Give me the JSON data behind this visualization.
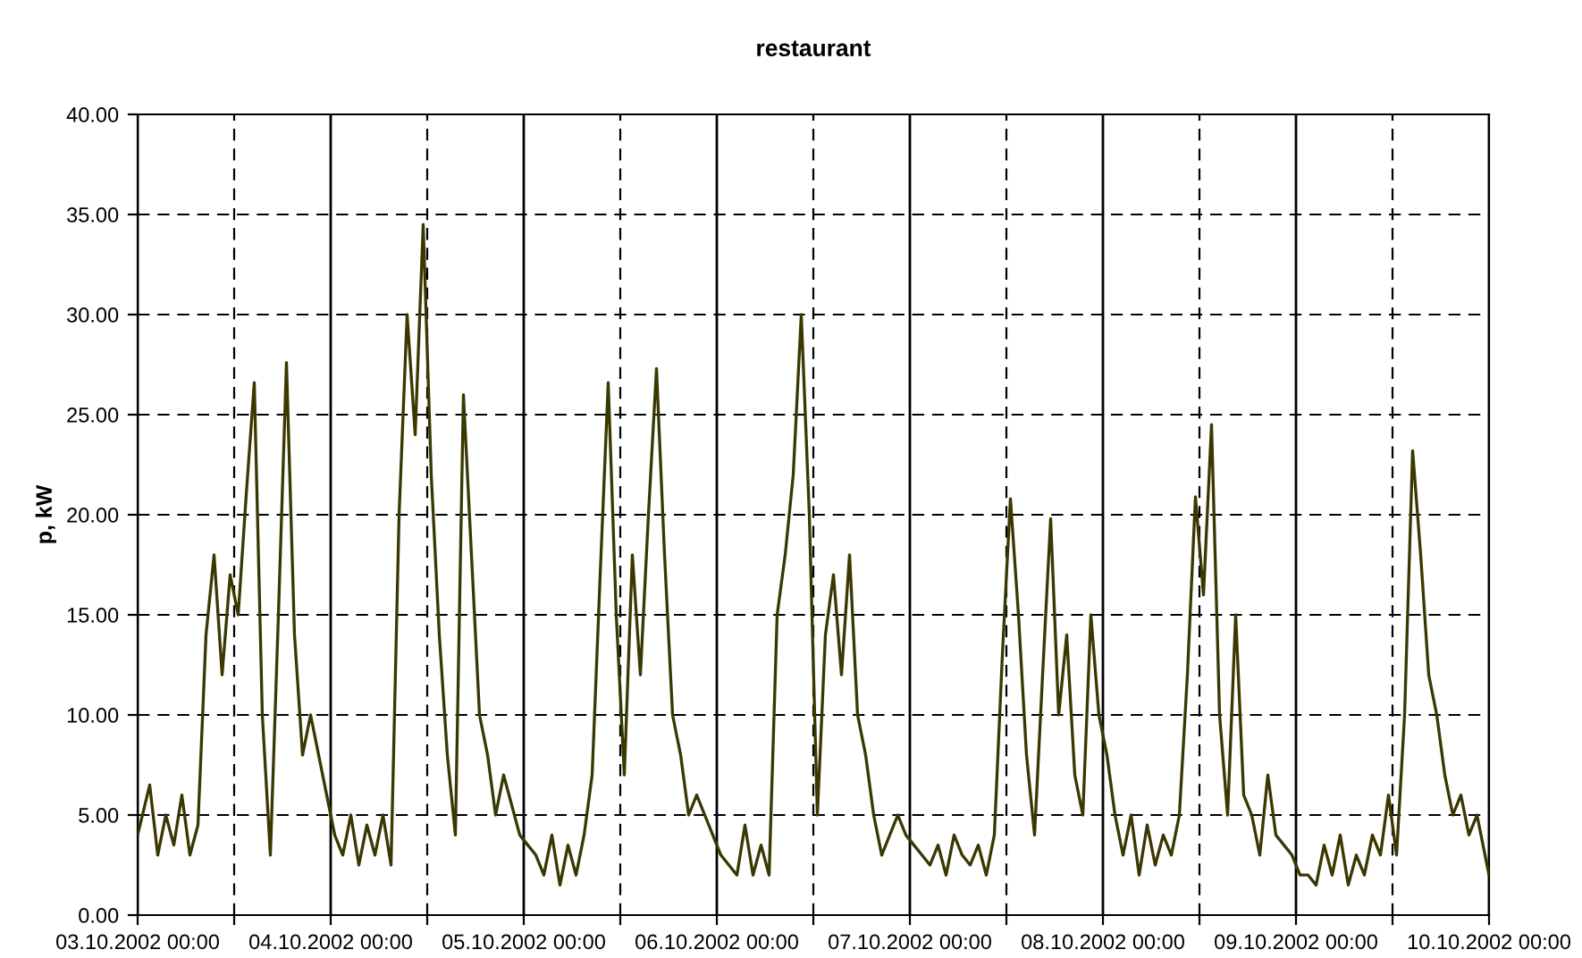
{
  "chart_data": {
    "type": "line",
    "title": "restaurant",
    "ylabel": "p, kW",
    "x": [
      "2002-10-03T00:00",
      "2002-10-03T01:30",
      "2002-10-03T02:30",
      "2002-10-03T03:30",
      "2002-10-03T04:30",
      "2002-10-03T05:30",
      "2002-10-03T06:30",
      "2002-10-03T07:30",
      "2002-10-03T08:30",
      "2002-10-03T09:30",
      "2002-10-03T10:30",
      "2002-10-03T11:30",
      "2002-10-03T12:30",
      "2002-10-03T13:30",
      "2002-10-03T14:30",
      "2002-10-03T15:30",
      "2002-10-03T16:30",
      "2002-10-03T17:30",
      "2002-10-03T18:30",
      "2002-10-03T19:30",
      "2002-10-03T20:30",
      "2002-10-03T21:30",
      "2002-10-03T22:30",
      "2002-10-03T23:30",
      "2002-10-04T00:30",
      "2002-10-04T01:30",
      "2002-10-04T02:30",
      "2002-10-04T03:30",
      "2002-10-04T04:30",
      "2002-10-04T05:30",
      "2002-10-04T06:30",
      "2002-10-04T07:30",
      "2002-10-04T08:30",
      "2002-10-04T09:30",
      "2002-10-04T10:30",
      "2002-10-04T11:30",
      "2002-10-04T12:30",
      "2002-10-04T13:30",
      "2002-10-04T14:30",
      "2002-10-04T15:30",
      "2002-10-04T16:30",
      "2002-10-04T17:30",
      "2002-10-04T18:30",
      "2002-10-04T19:30",
      "2002-10-04T20:30",
      "2002-10-04T21:30",
      "2002-10-04T22:30",
      "2002-10-04T23:30",
      "2002-10-05T00:30",
      "2002-10-05T01:30",
      "2002-10-05T02:30",
      "2002-10-05T03:30",
      "2002-10-05T04:30",
      "2002-10-05T05:30",
      "2002-10-05T06:30",
      "2002-10-05T07:30",
      "2002-10-05T08:30",
      "2002-10-05T09:30",
      "2002-10-05T10:30",
      "2002-10-05T11:30",
      "2002-10-05T12:30",
      "2002-10-05T13:30",
      "2002-10-05T14:30",
      "2002-10-05T15:30",
      "2002-10-05T16:30",
      "2002-10-05T17:30",
      "2002-10-05T18:30",
      "2002-10-05T19:30",
      "2002-10-05T20:30",
      "2002-10-05T21:30",
      "2002-10-05T22:30",
      "2002-10-05T23:30",
      "2002-10-06T00:30",
      "2002-10-06T01:30",
      "2002-10-06T02:30",
      "2002-10-06T03:30",
      "2002-10-06T04:30",
      "2002-10-06T05:30",
      "2002-10-06T06:30",
      "2002-10-06T07:30",
      "2002-10-06T08:30",
      "2002-10-06T09:30",
      "2002-10-06T10:30",
      "2002-10-06T11:30",
      "2002-10-06T12:30",
      "2002-10-06T13:30",
      "2002-10-06T14:30",
      "2002-10-06T15:30",
      "2002-10-06T16:30",
      "2002-10-06T17:30",
      "2002-10-06T18:30",
      "2002-10-06T19:30",
      "2002-10-06T20:30",
      "2002-10-06T21:30",
      "2002-10-06T22:30",
      "2002-10-06T23:30",
      "2002-10-07T00:30",
      "2002-10-07T01:30",
      "2002-10-07T02:30",
      "2002-10-07T03:30",
      "2002-10-07T04:30",
      "2002-10-07T05:30",
      "2002-10-07T06:30",
      "2002-10-07T07:30",
      "2002-10-07T08:30",
      "2002-10-07T09:30",
      "2002-10-07T10:30",
      "2002-10-07T11:30",
      "2002-10-07T12:30",
      "2002-10-07T13:30",
      "2002-10-07T14:30",
      "2002-10-07T15:30",
      "2002-10-07T16:30",
      "2002-10-07T17:30",
      "2002-10-07T18:30",
      "2002-10-07T19:30",
      "2002-10-07T20:30",
      "2002-10-07T21:30",
      "2002-10-07T22:30",
      "2002-10-07T23:30",
      "2002-10-08T00:30",
      "2002-10-08T01:30",
      "2002-10-08T02:30",
      "2002-10-08T03:30",
      "2002-10-08T04:30",
      "2002-10-08T05:30",
      "2002-10-08T06:30",
      "2002-10-08T07:30",
      "2002-10-08T08:30",
      "2002-10-08T09:30",
      "2002-10-08T10:30",
      "2002-10-08T11:30",
      "2002-10-08T12:30",
      "2002-10-08T13:30",
      "2002-10-08T14:30",
      "2002-10-08T15:30",
      "2002-10-08T16:30",
      "2002-10-08T17:30",
      "2002-10-08T18:30",
      "2002-10-08T19:30",
      "2002-10-08T20:30",
      "2002-10-08T21:30",
      "2002-10-08T22:30",
      "2002-10-08T23:30",
      "2002-10-09T00:30",
      "2002-10-09T01:30",
      "2002-10-09T02:30",
      "2002-10-09T03:30",
      "2002-10-09T04:30",
      "2002-10-09T05:30",
      "2002-10-09T06:30",
      "2002-10-09T07:30",
      "2002-10-09T08:30",
      "2002-10-09T09:30",
      "2002-10-09T10:30",
      "2002-10-09T11:30",
      "2002-10-09T12:30",
      "2002-10-09T13:30",
      "2002-10-09T14:30",
      "2002-10-09T15:30",
      "2002-10-09T16:30",
      "2002-10-09T17:30",
      "2002-10-09T18:30",
      "2002-10-09T19:30",
      "2002-10-09T20:30",
      "2002-10-09T21:30",
      "2002-10-09T22:30",
      "2002-10-09T23:30",
      "2002-10-10T00:00"
    ],
    "series": [
      {
        "color": "#3a3800",
        "values": [
          4,
          6.5,
          3,
          5,
          3.5,
          6,
          3,
          4.5,
          14,
          18,
          12,
          17,
          15,
          21,
          26.6,
          10,
          3,
          15,
          27.6,
          14,
          8,
          10,
          8,
          6,
          4,
          3,
          5,
          2.5,
          4.5,
          3,
          5,
          2.5,
          20,
          30,
          24,
          34.5,
          22,
          14,
          8,
          4,
          26,
          18,
          10,
          8,
          5,
          7,
          5.5,
          4,
          3.5,
          3,
          2,
          4,
          1.5,
          3.5,
          2,
          4,
          7,
          17,
          26.6,
          15,
          7,
          18,
          12,
          20,
          27.3,
          18,
          10,
          8,
          5,
          6,
          5,
          4,
          3,
          2.5,
          2,
          4.5,
          2,
          3.5,
          2,
          15,
          18,
          22,
          30,
          20,
          5,
          14,
          17,
          12,
          18,
          10,
          8,
          5,
          3,
          4,
          5,
          4,
          3.5,
          3,
          2.5,
          3.5,
          2,
          4,
          3,
          2.5,
          3.5,
          2,
          4,
          13,
          20.8,
          15,
          8,
          4,
          12,
          19.8,
          10,
          14,
          7,
          5,
          15,
          10,
          8,
          5,
          3,
          5,
          2,
          4.5,
          2.5,
          4,
          3,
          5,
          12,
          20.9,
          16,
          24.5,
          10,
          5,
          15,
          6,
          5,
          3,
          7,
          4,
          3.5,
          3,
          2,
          2,
          1.5,
          3.5,
          2,
          4,
          1.5,
          3,
          2,
          4,
          3,
          6,
          3,
          10,
          23.2,
          18,
          12,
          10,
          7,
          5,
          6,
          4,
          5,
          3,
          2
        ]
      }
    ],
    "xlim": [
      "2002-10-03T00:00",
      "2002-10-10T00:00"
    ],
    "xticks": [
      {
        "value": "2002-10-03T00:00",
        "label": "03.10.2002 00:00"
      },
      {
        "value": "2002-10-03T12:00",
        "label": null
      },
      {
        "value": "2002-10-04T00:00",
        "label": "04.10.2002 00:00"
      },
      {
        "value": "2002-10-04T12:00",
        "label": null
      },
      {
        "value": "2002-10-05T00:00",
        "label": "05.10.2002 00:00"
      },
      {
        "value": "2002-10-05T12:00",
        "label": null
      },
      {
        "value": "2002-10-06T00:00",
        "label": "06.10.2002 00:00"
      },
      {
        "value": "2002-10-06T12:00",
        "label": null
      },
      {
        "value": "2002-10-07T00:00",
        "label": "07.10.2002 00:00"
      },
      {
        "value": "2002-10-07T12:00",
        "label": null
      },
      {
        "value": "2002-10-08T00:00",
        "label": "08.10.2002 00:00"
      },
      {
        "value": "2002-10-08T12:00",
        "label": null
      },
      {
        "value": "2002-10-09T00:00",
        "label": "09.10.2002 00:00"
      },
      {
        "value": "2002-10-09T12:00",
        "label": null
      },
      {
        "value": "2002-10-10T00:00",
        "label": "10.10.2002 00:00"
      }
    ],
    "ylim": [
      0,
      40
    ],
    "yticks": [
      {
        "value": 0,
        "label": "0.00"
      },
      {
        "value": 5,
        "label": "5.00"
      },
      {
        "value": 10,
        "label": "10.00"
      },
      {
        "value": 15,
        "label": "15.00"
      },
      {
        "value": 20,
        "label": "20.00"
      },
      {
        "value": 25,
        "label": "25.00"
      },
      {
        "value": 30,
        "label": "30.00"
      },
      {
        "value": 35,
        "label": "35.00"
      },
      {
        "value": 40,
        "label": "40.00"
      }
    ],
    "grid": true,
    "legend": false
  }
}
